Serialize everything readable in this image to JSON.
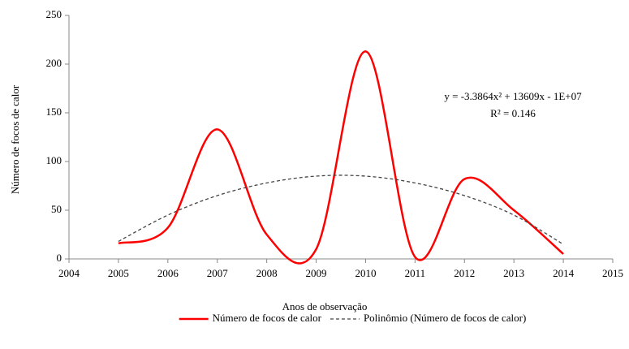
{
  "chart_data": {
    "type": "line",
    "x": [
      2005,
      2006,
      2007,
      2008,
      2009,
      2010,
      2011,
      2012,
      2013,
      2014
    ],
    "series": [
      {
        "name": "Número de focos de calor",
        "color": "#ff0000",
        "style": "solid",
        "smooth": true,
        "values": [
          16,
          32,
          133,
          25,
          10,
          213,
          2,
          82,
          50,
          5
        ]
      },
      {
        "name": "Polinômio (Número de focos de calor)",
        "color": "#444444",
        "style": "dashed",
        "smooth": true,
        "values": [
          18,
          45,
          65,
          78,
          85,
          85,
          78,
          65,
          45,
          15
        ]
      }
    ],
    "x_label": "Anos de observação",
    "y_label": "Número  de focos de calor",
    "annotations": [
      "y = -3.3864x² + 13609x - 1E+07",
      "R² = 0.146"
    ],
    "xlim": [
      2004,
      2015
    ],
    "xticks": [
      2004,
      2005,
      2006,
      2007,
      2008,
      2009,
      2010,
      2011,
      2012,
      2013,
      2014,
      2015
    ],
    "ylim": [
      0,
      250
    ],
    "yticks": [
      0,
      50,
      100,
      150,
      200,
      250
    ],
    "grid": false,
    "legend": "bottom"
  }
}
